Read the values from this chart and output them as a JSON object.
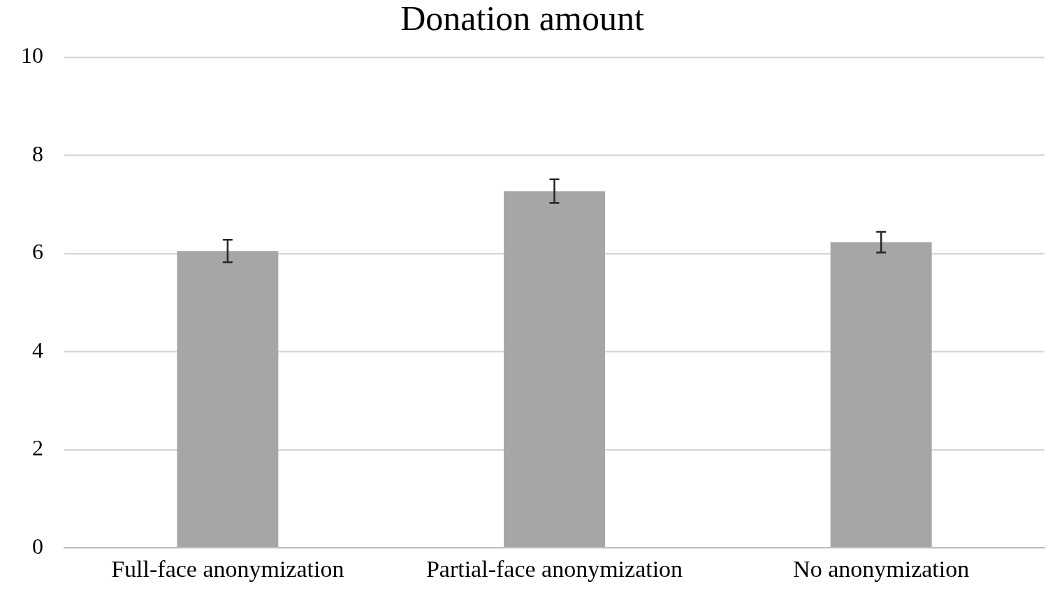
{
  "chart_data": {
    "type": "bar",
    "title": "Donation amount",
    "categories": [
      "Full-face anonymization",
      "Partial-face anonymization",
      "No anonymization"
    ],
    "values": [
      6.05,
      7.27,
      6.23
    ],
    "errors": [
      0.23,
      0.24,
      0.21
    ],
    "color": "#a6a6a6",
    "ylim": [
      0,
      10
    ],
    "yticks": [
      0,
      2,
      4,
      6,
      8,
      10
    ],
    "grid": "y",
    "legend": false
  }
}
